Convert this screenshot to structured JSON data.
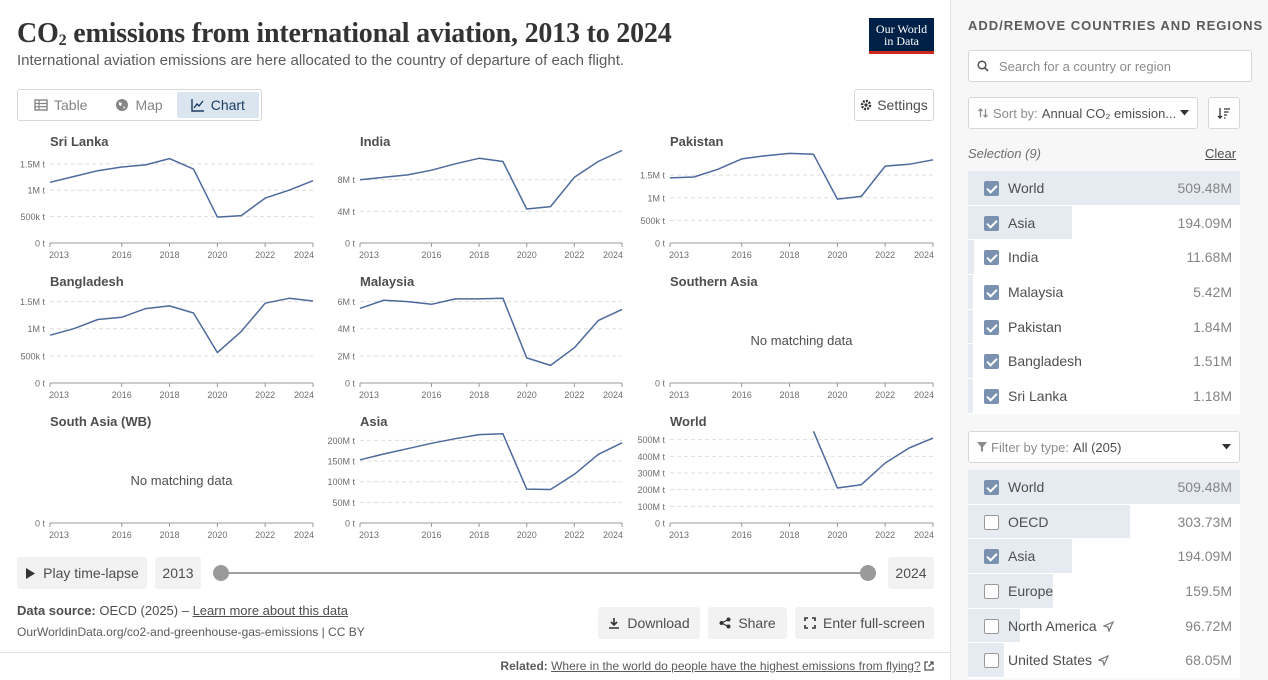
{
  "header": {
    "title_main": "CO",
    "title_sub": "2",
    "title_rest": " emissions from international aviation, 2013 to 2024",
    "subtitle": "International aviation emissions are here allocated to the country of departure of each flight.",
    "logo_line1": "Our World",
    "logo_line2": "in Data"
  },
  "tabs": [
    {
      "label": "Table",
      "icon": "table-icon",
      "active": false
    },
    {
      "label": "Map",
      "icon": "globe-icon",
      "active": false
    },
    {
      "label": "Chart",
      "icon": "line-chart-icon",
      "active": true
    }
  ],
  "settings_label": "Settings",
  "no_data_label": "No matching data",
  "chart_data": [
    {
      "type": "line",
      "title": "Sri Lanka",
      "x": [
        2013,
        2014,
        2015,
        2016,
        2017,
        2018,
        2019,
        2020,
        2021,
        2022,
        2023,
        2024
      ],
      "values": [
        1150000,
        1260000,
        1370000,
        1440000,
        1480000,
        1600000,
        1400000,
        490000,
        520000,
        850000,
        1000000,
        1180000
      ],
      "ylim": [
        0,
        1800000
      ],
      "yticks": [
        0,
        500000,
        1000000,
        1500000
      ],
      "ytick_labels": [
        "0 t",
        "500k t",
        "1M t",
        "1.5M t"
      ],
      "xtick_labels": [
        "2013",
        "2016",
        "2018",
        "2020",
        "2022",
        "2024"
      ],
      "xticks": [
        2013,
        2016,
        2018,
        2020,
        2022,
        2024
      ]
    },
    {
      "type": "line",
      "title": "India",
      "x": [
        2013,
        2014,
        2015,
        2016,
        2017,
        2018,
        2019,
        2020,
        2021,
        2022,
        2023,
        2024
      ],
      "values": [
        8000000,
        8300000,
        8600000,
        9200000,
        10000000,
        10700000,
        10300000,
        4300000,
        4600000,
        8300000,
        10300000,
        11680000
      ],
      "ylim": [
        0,
        12000000
      ],
      "yticks": [
        0,
        4000000,
        8000000
      ],
      "ytick_labels": [
        "0 t",
        "4M t",
        "8M t"
      ],
      "xtick_labels": [
        "2013",
        "2016",
        "2018",
        "2020",
        "2022",
        "2024"
      ],
      "xticks": [
        2013,
        2016,
        2018,
        2020,
        2022,
        2024
      ]
    },
    {
      "type": "line",
      "title": "Pakistan",
      "x": [
        2013,
        2014,
        2015,
        2016,
        2017,
        2018,
        2019,
        2020,
        2021,
        2022,
        2023,
        2024
      ],
      "values": [
        1440000,
        1460000,
        1630000,
        1860000,
        1930000,
        1980000,
        1960000,
        970000,
        1030000,
        1700000,
        1740000,
        1840000
      ],
      "ylim": [
        0,
        2100000
      ],
      "yticks": [
        0,
        500000,
        1000000,
        1500000
      ],
      "ytick_labels": [
        "0 t",
        "500k t",
        "1M t",
        "1.5M t"
      ],
      "xtick_labels": [
        "2013",
        "2016",
        "2018",
        "2020",
        "2022",
        "2024"
      ],
      "xticks": [
        2013,
        2016,
        2018,
        2020,
        2022,
        2024
      ]
    },
    {
      "type": "line",
      "title": "Bangladesh",
      "x": [
        2013,
        2014,
        2015,
        2016,
        2017,
        2018,
        2019,
        2020,
        2021,
        2022,
        2023,
        2024
      ],
      "values": [
        880000,
        1000000,
        1170000,
        1210000,
        1370000,
        1420000,
        1290000,
        560000,
        950000,
        1470000,
        1560000,
        1510000
      ],
      "ylim": [
        0,
        1750000
      ],
      "yticks": [
        0,
        500000,
        1000000,
        1500000
      ],
      "ytick_labels": [
        "0 t",
        "500k t",
        "1M t",
        "1.5M t"
      ],
      "xtick_labels": [
        "2013",
        "2016",
        "2018",
        "2020",
        "2022",
        "2024"
      ],
      "xticks": [
        2013,
        2016,
        2018,
        2020,
        2022,
        2024
      ]
    },
    {
      "type": "line",
      "title": "Malaysia",
      "x": [
        2013,
        2014,
        2015,
        2016,
        2017,
        2018,
        2019,
        2020,
        2021,
        2022,
        2023,
        2024
      ],
      "values": [
        5500000,
        6100000,
        6000000,
        5800000,
        6200000,
        6200000,
        6250000,
        1850000,
        1300000,
        2600000,
        4600000,
        5420000
      ],
      "ylim": [
        0,
        7000000
      ],
      "yticks": [
        0,
        2000000,
        4000000,
        6000000
      ],
      "ytick_labels": [
        "0 t",
        "2M t",
        "4M t",
        "6M t"
      ],
      "xtick_labels": [
        "2013",
        "2016",
        "2018",
        "2020",
        "2022",
        "2024"
      ],
      "xticks": [
        2013,
        2016,
        2018,
        2020,
        2022,
        2024
      ]
    },
    {
      "type": "line",
      "title": "Southern Asia",
      "x": [],
      "values": [],
      "ylim": [
        0,
        1
      ],
      "yticks": [
        0
      ],
      "ytick_labels": [
        "0 t"
      ],
      "xtick_labels": [
        "2013",
        "2016",
        "2018",
        "2020",
        "2022",
        "2024"
      ],
      "xticks": [
        2013,
        2016,
        2018,
        2020,
        2022,
        2024
      ]
    },
    {
      "type": "line",
      "title": "South Asia (WB)",
      "x": [],
      "values": [],
      "ylim": [
        0,
        1
      ],
      "yticks": [
        0
      ],
      "ytick_labels": [
        "0 t"
      ],
      "xtick_labels": [
        "2013",
        "2016",
        "2018",
        "2020",
        "2022",
        "2024"
      ],
      "xticks": [
        2013,
        2016,
        2018,
        2020,
        2022,
        2024
      ]
    },
    {
      "type": "line",
      "title": "Asia",
      "x": [
        2013,
        2014,
        2015,
        2016,
        2017,
        2018,
        2019,
        2020,
        2021,
        2022,
        2023,
        2024
      ],
      "values": [
        153000000,
        167000000,
        180000000,
        193000000,
        204000000,
        214000000,
        216000000,
        82000000,
        81000000,
        118000000,
        166000000,
        194090000
      ],
      "ylim": [
        0,
        230000000
      ],
      "yticks": [
        0,
        50000000,
        100000000,
        150000000,
        200000000
      ],
      "ytick_labels": [
        "0 t",
        "50M t",
        "100M t",
        "150M t",
        "200M t"
      ],
      "xtick_labels": [
        "2013",
        "2016",
        "2018",
        "2020",
        "2022",
        "2024"
      ],
      "xticks": [
        2013,
        2016,
        2018,
        2020,
        2022,
        2024
      ]
    },
    {
      "type": "line",
      "title": "World",
      "x": [
        2019,
        2020,
        2021,
        2022,
        2023,
        2024
      ],
      "values": [
        550000000,
        210000000,
        230000000,
        360000000,
        450000000,
        509480000
      ],
      "ylim": [
        0,
        570000000
      ],
      "yticks": [
        0,
        100000000,
        200000000,
        300000000,
        400000000,
        500000000
      ],
      "ytick_labels": [
        "0 t",
        "100M t",
        "200M t",
        "300M t",
        "400M t",
        "500M t"
      ],
      "xtick_labels": [
        "2013",
        "2016",
        "2018",
        "2020",
        "2022",
        "2024"
      ],
      "xticks": [
        2013,
        2016,
        2018,
        2020,
        2022,
        2024
      ]
    }
  ],
  "timeline": {
    "play_label": "Play time-lapse",
    "start_year": "2013",
    "end_year": "2024"
  },
  "footer": {
    "source_label": "Data source:",
    "source_text": " OECD (2025) – ",
    "source_link": "Learn more about this data",
    "url": "OurWorldinData.org/co2-and-greenhouse-gas-emissions | CC BY",
    "download_label": "Download",
    "share_label": "Share",
    "fullscreen_label": "Enter full-screen",
    "related_label": "Related:",
    "related_link": "Where in the world do people have the highest emissions from flying?"
  },
  "sidebar": {
    "title": "ADD/REMOVE COUNTRIES AND REGIONS",
    "search_placeholder": "Search for a country or region",
    "sort_label": "Sort by:",
    "sort_value": "Annual CO₂ emission...",
    "selection_label": "Selection (9)",
    "clear_label": "Clear",
    "selected": [
      {
        "name": "World",
        "value": "509.48M",
        "fraction": 1.0,
        "checked": true
      },
      {
        "name": "Asia",
        "value": "194.09M",
        "fraction": 0.381,
        "checked": true
      },
      {
        "name": "India",
        "value": "11.68M",
        "fraction": 0.023,
        "checked": true
      },
      {
        "name": "Malaysia",
        "value": "5.42M",
        "fraction": 0.011,
        "checked": true
      },
      {
        "name": "Pakistan",
        "value": "1.84M",
        "fraction": 0.004,
        "checked": true
      },
      {
        "name": "Bangladesh",
        "value": "1.51M",
        "fraction": 0.003,
        "checked": true
      },
      {
        "name": "Sri Lanka",
        "value": "1.18M",
        "fraction": 0.002,
        "checked": true
      }
    ],
    "filter_label": "Filter by type:",
    "filter_value": "All (205)",
    "all_entities": [
      {
        "name": "World",
        "value": "509.48M",
        "fraction": 1.0,
        "checked": true,
        "arrow": false
      },
      {
        "name": "OECD",
        "value": "303.73M",
        "fraction": 0.596,
        "checked": false,
        "arrow": false
      },
      {
        "name": "Asia",
        "value": "194.09M",
        "fraction": 0.381,
        "checked": true,
        "arrow": false
      },
      {
        "name": "Europe",
        "value": "159.5M",
        "fraction": 0.313,
        "checked": false,
        "arrow": false
      },
      {
        "name": "North America",
        "value": "96.72M",
        "fraction": 0.19,
        "checked": false,
        "arrow": true
      },
      {
        "name": "United States",
        "value": "68.05M",
        "fraction": 0.134,
        "checked": false,
        "arrow": true
      }
    ]
  },
  "colors": {
    "line": "#4c6a9c",
    "accent_bg": "#dbe5f0",
    "bar_fill": "#e6ebf1"
  }
}
